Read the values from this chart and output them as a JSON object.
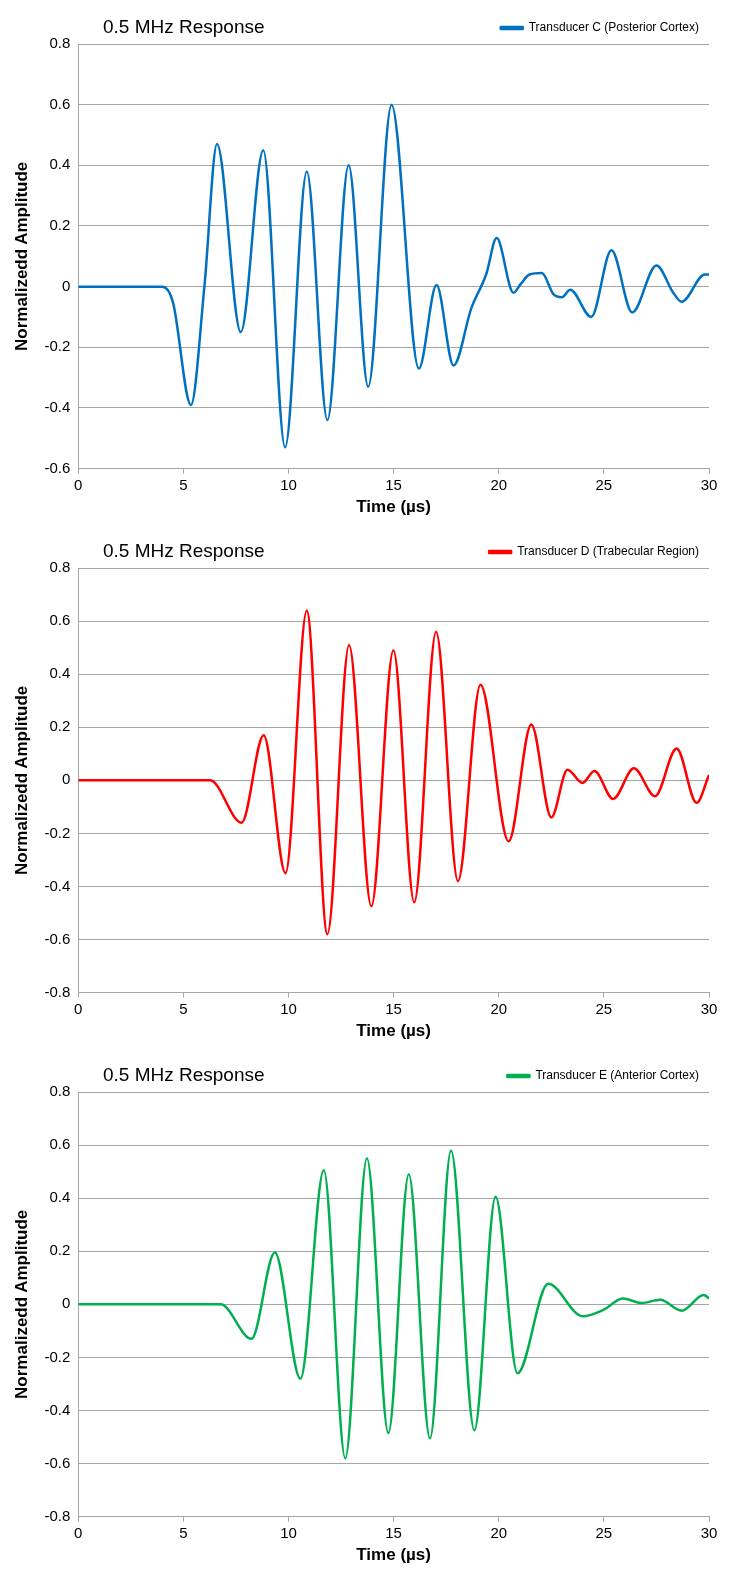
{
  "chart_data": [
    {
      "type": "line",
      "title": "0.5 MHz Response",
      "xlabel": "Time (µs)",
      "ylabel": "Normalizedd Amplitude",
      "xlim": [
        0,
        30
      ],
      "xticks": [
        0,
        5,
        10,
        15,
        20,
        25,
        30
      ],
      "ylim": [
        -0.6,
        0.8
      ],
      "yticks": [
        -0.6,
        -0.4,
        -0.2,
        0,
        0.2,
        0.4,
        0.6,
        0.8
      ],
      "grid": "y",
      "legend": "top right",
      "marker": "none",
      "line_style": "solid",
      "series": [
        {
          "name": "Transducer C (Posterior Cortex)",
          "color": "#0070c0",
          "x": [
            0,
            4.0,
            4.5,
            5.36,
            6.0,
            6.6,
            7.73,
            8.8,
            9.84,
            10.87,
            11.85,
            12.86,
            13.79,
            14.9,
            16.2,
            17.04,
            17.85,
            18.7,
            19.4,
            19.9,
            20.7,
            21.06,
            21.46,
            22.05,
            22.6,
            23.0,
            23.4,
            24.4,
            25.36,
            26.35,
            27.5,
            28.3,
            28.7,
            29.8,
            30
          ],
          "values": [
            0,
            0,
            -0.05,
            -0.39,
            0,
            0.47,
            -0.15,
            0.45,
            -0.53,
            0.38,
            -0.44,
            0.4,
            -0.33,
            0.6,
            -0.27,
            0.005,
            -0.26,
            -0.07,
            0.04,
            0.16,
            -0.02,
            0.01,
            0.04,
            0.045,
            -0.025,
            -0.035,
            -0.01,
            -0.1,
            0.12,
            -0.085,
            0.07,
            -0.02,
            -0.05,
            0.04,
            0.04
          ]
        }
      ]
    },
    {
      "type": "line",
      "title": "0.5 MHz Response",
      "xlabel": "Time (µs)",
      "ylabel": "Normalizedd Amplitude",
      "xlim": [
        0,
        30
      ],
      "xticks": [
        0,
        5,
        10,
        15,
        20,
        25,
        30
      ],
      "ylim": [
        -0.8,
        0.8
      ],
      "yticks": [
        -0.8,
        -0.6,
        -0.4,
        -0.2,
        0,
        0.2,
        0.4,
        0.6,
        0.8
      ],
      "grid": "y",
      "legend": "top right",
      "marker": "none",
      "line_style": "solid",
      "series": [
        {
          "name": "Transducer D (Trabecular Region)",
          "color": "#ff0000",
          "x": [
            0,
            6.27,
            7.77,
            8.82,
            9.86,
            10.87,
            11.85,
            12.88,
            13.94,
            14.99,
            15.98,
            17.02,
            18.06,
            19.13,
            20.47,
            21.55,
            22.5,
            23.27,
            23.98,
            24.55,
            25.44,
            26.43,
            27.43,
            28.46,
            29.41,
            30
          ],
          "values": [
            0,
            0,
            -0.16,
            0.17,
            -0.35,
            0.64,
            -0.58,
            0.51,
            -0.475,
            0.49,
            -0.46,
            0.56,
            -0.38,
            0.36,
            -0.23,
            0.21,
            -0.14,
            0.04,
            -0.01,
            0.035,
            -0.07,
            0.045,
            -0.06,
            0.12,
            -0.085,
            0.02
          ]
        }
      ]
    },
    {
      "type": "line",
      "title": "0.5 MHz Response",
      "xlabel": "Time (µs)",
      "ylabel": "Normalizedd Amplitude",
      "xlim": [
        0,
        30
      ],
      "xticks": [
        0,
        5,
        10,
        15,
        20,
        25,
        30
      ],
      "ylim": [
        -0.8,
        0.8
      ],
      "yticks": [
        -0.8,
        -0.6,
        -0.4,
        -0.2,
        0,
        0.2,
        0.4,
        0.6,
        0.8
      ],
      "grid": "y",
      "legend": "top right",
      "marker": "none",
      "line_style": "solid",
      "series": [
        {
          "name": "Transducer E (Anterior Cortex)",
          "color": "#00b050",
          "x": [
            0,
            6.77,
            8.24,
            9.35,
            10.57,
            11.68,
            12.7,
            13.73,
            14.75,
            15.72,
            16.73,
            17.73,
            18.84,
            19.85,
            20.89,
            22.35,
            23.99,
            25.0,
            25.9,
            26.8,
            27.68,
            28.7,
            29.75,
            30
          ],
          "values": [
            0,
            0,
            -0.13,
            0.195,
            -0.28,
            0.505,
            -0.58,
            0.55,
            -0.485,
            0.49,
            -0.505,
            0.58,
            -0.475,
            0.405,
            -0.26,
            0.077,
            -0.045,
            -0.02,
            0.022,
            0.005,
            0.017,
            -0.024,
            0.035,
            0.022
          ]
        }
      ]
    }
  ]
}
